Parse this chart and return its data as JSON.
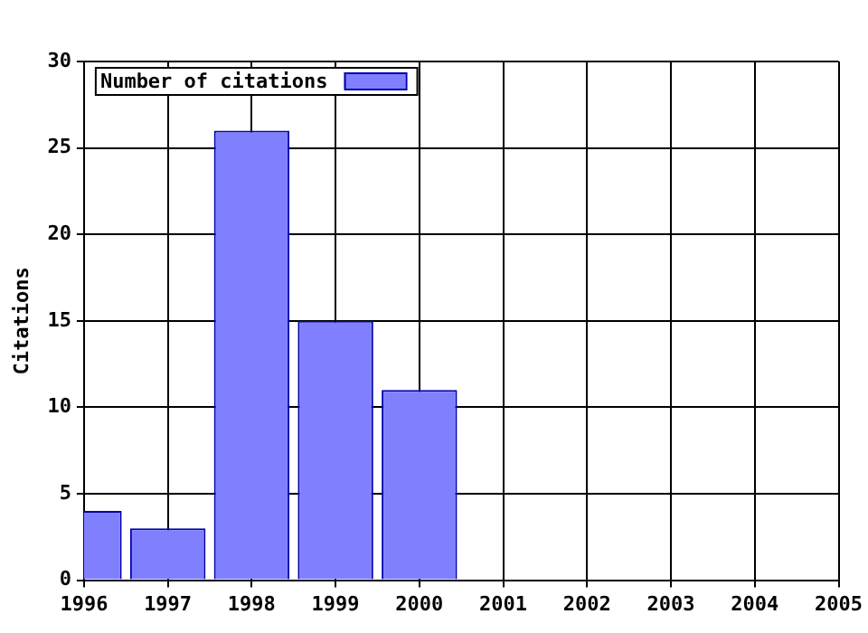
{
  "chart_data": {
    "type": "bar",
    "ylabel": "Citations",
    "x": [
      1996,
      1997,
      1998,
      1999,
      2000
    ],
    "series": [
      {
        "name": "Number of citations",
        "color": "#8080ff",
        "values": [
          4,
          3,
          26,
          15,
          11
        ]
      }
    ],
    "xlim": [
      1996,
      2005
    ],
    "xticks": [
      1996,
      1997,
      1998,
      1999,
      2000,
      2001,
      2002,
      2003,
      2004,
      2005
    ],
    "ylim": [
      0,
      30
    ],
    "yticks": [
      0,
      5,
      10,
      15,
      20,
      25,
      30
    ],
    "grid": true,
    "legend": "top left"
  }
}
